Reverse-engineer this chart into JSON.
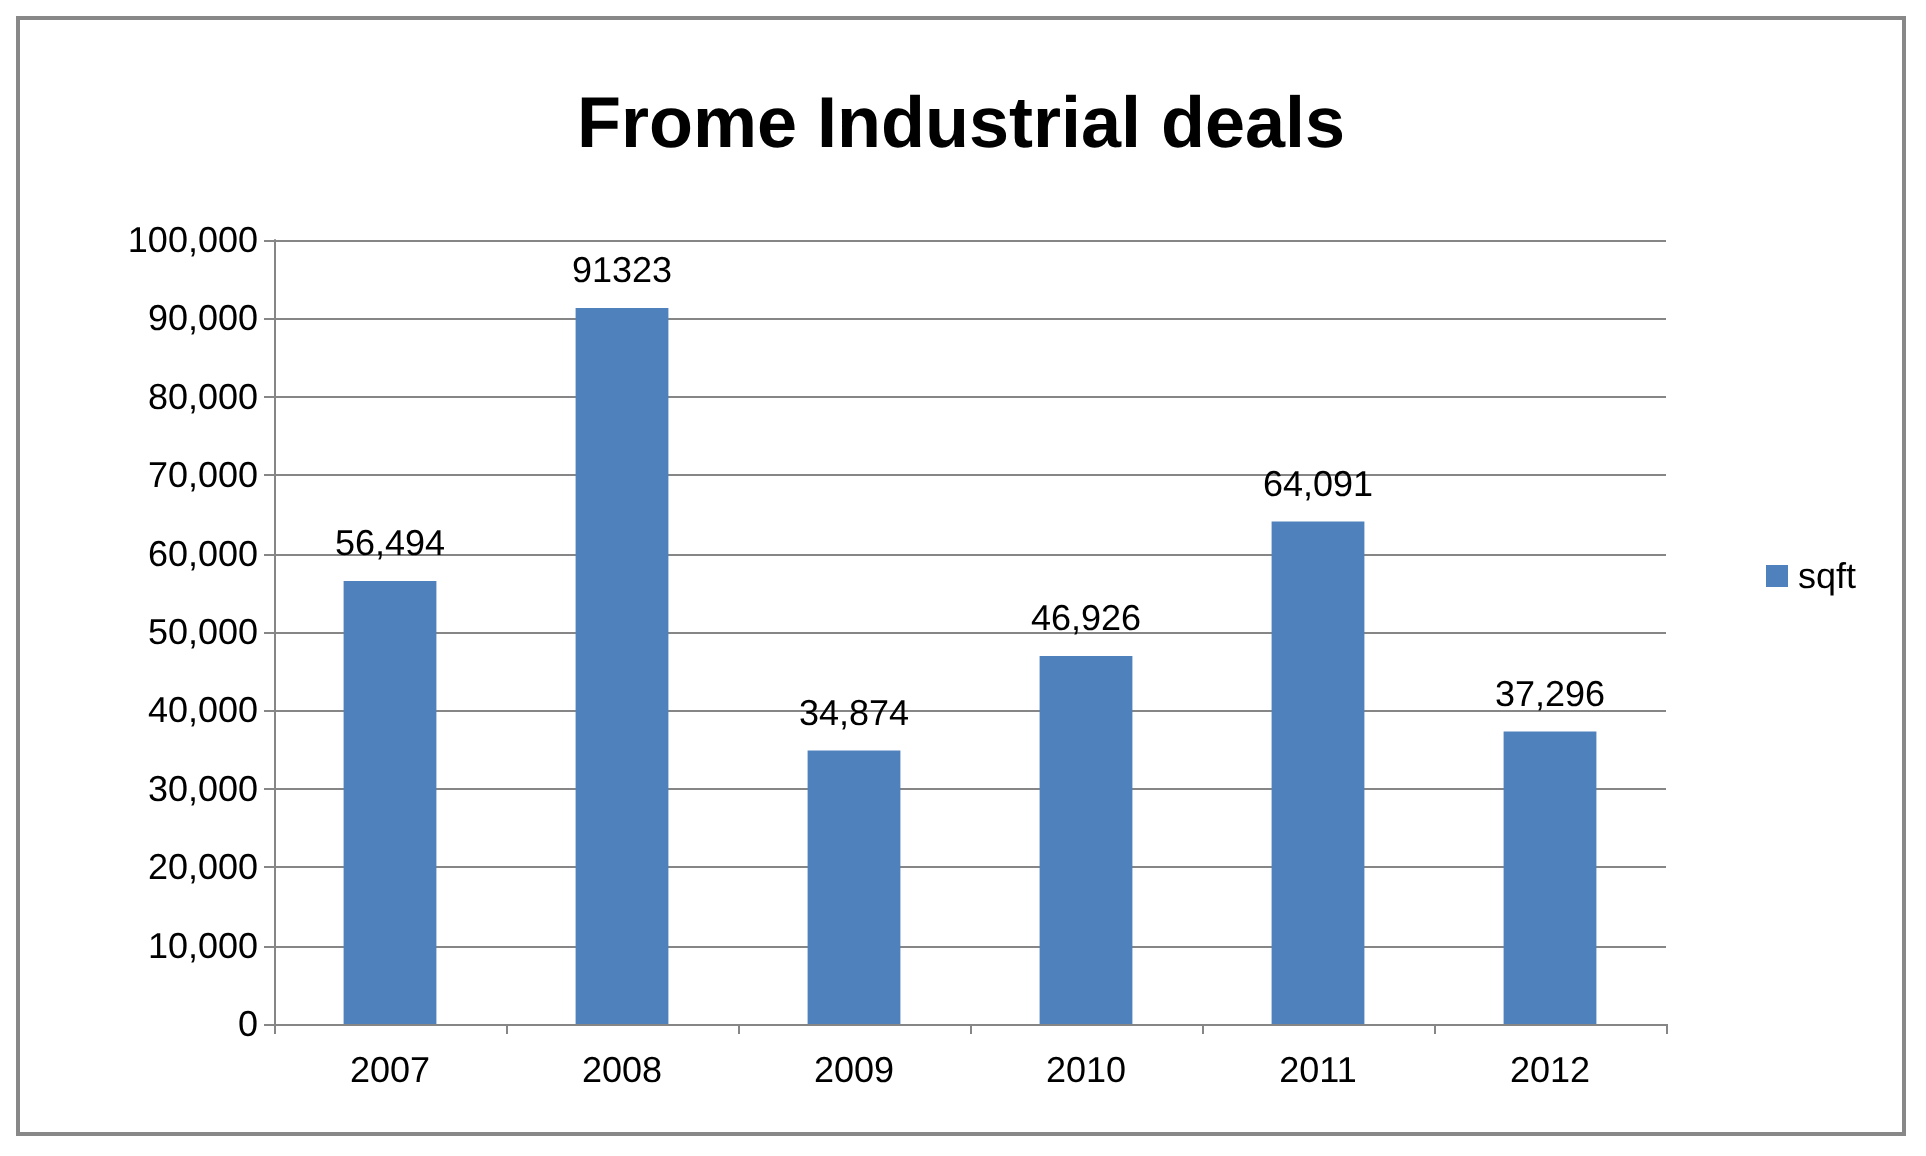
{
  "chart_data": {
    "type": "bar",
    "title": "Frome Industrial deals",
    "categories": [
      "2007",
      "2008",
      "2009",
      "2010",
      "2011",
      "2012"
    ],
    "series": [
      {
        "name": "sqft",
        "color": "#4f81bd",
        "values": [
          56494,
          91323,
          34874,
          46926,
          64091,
          37296
        ],
        "value_labels": [
          "56,494",
          "91323",
          "34,874",
          "46,926",
          "64,091",
          "37,296"
        ]
      }
    ],
    "ylim": [
      0,
      100000
    ],
    "yticks": [
      {
        "value": 0,
        "label": "0"
      },
      {
        "value": 10000,
        "label": "10,000"
      },
      {
        "value": 20000,
        "label": "20,000"
      },
      {
        "value": 30000,
        "label": "30,000"
      },
      {
        "value": 40000,
        "label": "40,000"
      },
      {
        "value": 50000,
        "label": "50,000"
      },
      {
        "value": 60000,
        "label": "60,000"
      },
      {
        "value": 70000,
        "label": "70,000"
      },
      {
        "value": 80000,
        "label": "80,000"
      },
      {
        "value": 90000,
        "label": "90,000"
      },
      {
        "value": 100000,
        "label": "100,000"
      }
    ],
    "grid": "y",
    "legend": "right"
  }
}
